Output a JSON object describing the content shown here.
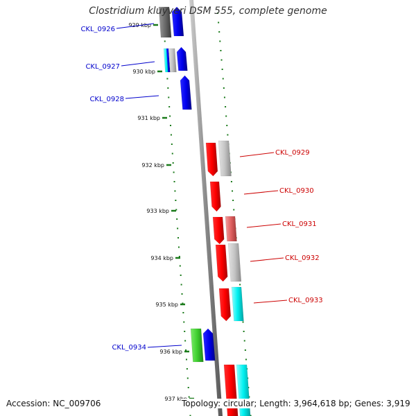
{
  "title": "Clostridium kluyveri DSM 555, complete genome",
  "footer": {
    "accession": "Accession: NC_009706",
    "summary": "Topology: circular; Length: 3,964,618 bp; Genes: 3,919"
  },
  "scale_ticks": [
    "929 kbp",
    "930 kbp",
    "931 kbp",
    "932 kbp",
    "933 kbp",
    "934 kbp",
    "935 kbp",
    "936 kbp",
    "937 kbp"
  ],
  "genes": [
    {
      "label": "CKL_0926",
      "strand": "left",
      "color": "#0000cc"
    },
    {
      "label": "CKL_0927",
      "strand": "left",
      "color": "#0000cc"
    },
    {
      "label": "CKL_0928",
      "strand": "left",
      "color": "#0000cc"
    },
    {
      "label": "CKL_0929",
      "strand": "right",
      "color": "#cc0000"
    },
    {
      "label": "CKL_0930",
      "strand": "right",
      "color": "#cc0000"
    },
    {
      "label": "CKL_0931",
      "strand": "right",
      "color": "#cc0000"
    },
    {
      "label": "CKL_0932",
      "strand": "right",
      "color": "#cc0000"
    },
    {
      "label": "CKL_0933",
      "strand": "right",
      "color": "#cc0000"
    },
    {
      "label": "CKL_0934",
      "strand": "left",
      "color": "#0000cc"
    }
  ]
}
